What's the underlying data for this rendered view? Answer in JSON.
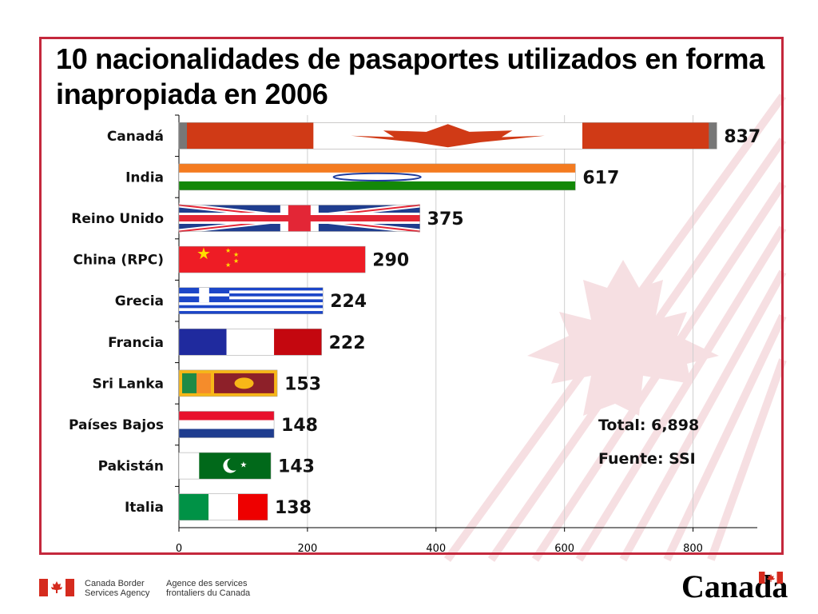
{
  "title": "10 nacionalidades de pasaportes utilizados en forma inapropiada en 2006",
  "notes": {
    "total": "Total: 6,898",
    "source": "Fuente: SSI"
  },
  "footer": {
    "agency_en": [
      "Canada Border",
      "Services Agency"
    ],
    "agency_fr": [
      "Agence des services",
      "frontaliers du Canada"
    ],
    "wordmark": "Canada"
  },
  "colors": {
    "frame": "#c4283c",
    "canada_red": "#d52b1e"
  },
  "chart_data": {
    "type": "bar",
    "orientation": "horizontal",
    "categories": [
      "Canadá",
      "India",
      "Reino Unido",
      "China (RPC)",
      "Grecia",
      "Francia",
      "Sri Lanka",
      "Países Bajos",
      "Pakistán",
      "Italia"
    ],
    "values": [
      837,
      617,
      375,
      290,
      224,
      222,
      153,
      148,
      143,
      138
    ],
    "value_labels": [
      "837",
      "617",
      "375",
      "290",
      "224",
      "222",
      "153",
      "148",
      "143",
      "138"
    ],
    "bar_styles": [
      "flag-canada",
      "flag-india",
      "flag-uk",
      "flag-china",
      "flag-greece",
      "flag-france",
      "flag-srilanka",
      "flag-netherlands",
      "flag-pakistan",
      "flag-italy"
    ],
    "x_ticks": [
      0,
      200,
      400,
      600,
      800
    ],
    "x_tick_labels": [
      "0",
      "200",
      "400",
      "600",
      "800"
    ],
    "xlim": [
      0,
      900
    ],
    "xlabel": "",
    "ylabel": "",
    "grid": "vertical"
  }
}
